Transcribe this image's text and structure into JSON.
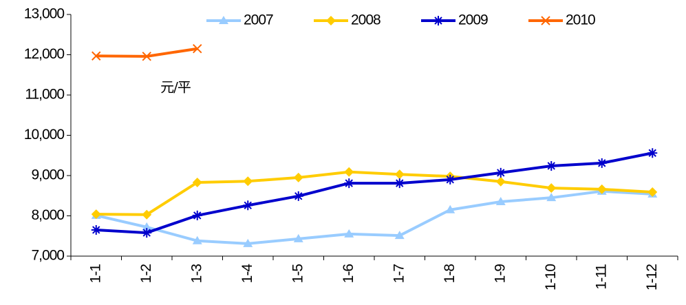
{
  "chart_data": {
    "type": "line",
    "categories": [
      "1-1",
      "1-2",
      "1-3",
      "1-4",
      "1-5",
      "1-6",
      "1-7",
      "1-8",
      "1-9",
      "1-10",
      "1-11",
      "1-12"
    ],
    "series": [
      {
        "name": "2007",
        "color": "#99ccff",
        "marker": "triangle",
        "values": [
          8010,
          7720,
          7380,
          7310,
          7430,
          7550,
          7510,
          8150,
          8350,
          8450,
          8610,
          8540
        ]
      },
      {
        "name": "2008",
        "color": "#ffcc00",
        "marker": "diamond",
        "values": [
          8040,
          8030,
          8830,
          8860,
          8950,
          9090,
          9030,
          8980,
          8850,
          8690,
          8660,
          8590
        ]
      },
      {
        "name": "2009",
        "color": "#0000cc",
        "marker": "asterisk",
        "values": [
          7650,
          7580,
          8010,
          8260,
          8490,
          8810,
          8810,
          8900,
          9070,
          9240,
          9310,
          9560
        ]
      },
      {
        "name": "2010",
        "color": "#ff6600",
        "marker": "x",
        "values": [
          11970,
          11960,
          12150,
          null,
          null,
          null,
          null,
          null,
          null,
          null,
          null,
          null
        ]
      }
    ],
    "annotation": "元/平",
    "ylim": [
      7000,
      13000
    ],
    "yticks": [
      {
        "value": 7000,
        "label": "7,000"
      },
      {
        "value": 8000,
        "label": "8,000"
      },
      {
        "value": 9000,
        "label": "9,000"
      },
      {
        "value": 10000,
        "label": "10,000"
      },
      {
        "value": 11000,
        "label": "11,000"
      },
      {
        "value": 12000,
        "label": "12,000"
      },
      {
        "value": 13000,
        "label": "13,000"
      }
    ],
    "legend": "top"
  }
}
